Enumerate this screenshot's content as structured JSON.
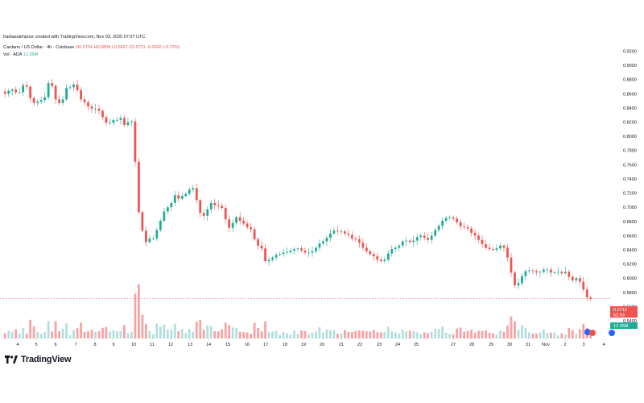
{
  "header": {
    "credit": "fradiasalehpour created with TradingView.com, Nov 03, 2025 07:07 UTC",
    "symbol": "Cardano / US Dollar · 4h · Coinbase",
    "ohlc": "O0.5754 H0.5808 L0.5667 C0.5711 -0.0042 (-0.73%)",
    "vol_label": "Vol · ADA",
    "vol_value": "12.35M"
  },
  "price_badge": {
    "price": "0.5713",
    "timer": "52:53"
  },
  "volume_badge": "12.35M",
  "brand": "TradingView",
  "colors": {
    "up": "#22ab94",
    "down": "#ef5350",
    "up_vol": "#b2dfdb",
    "down_vol": "#faa1a4"
  },
  "chart_data": {
    "type": "candlestick",
    "title": "Cardano / US Dollar · 4h · Coinbase",
    "ylim": [
      0.54,
      0.92
    ],
    "y_ticks": [
      "0.9200",
      "0.9000",
      "0.8800",
      "0.8600",
      "0.8400",
      "0.8200",
      "0.8000",
      "0.7800",
      "0.7600",
      "0.7400",
      "0.7200",
      "0.7000",
      "0.6800",
      "0.6600",
      "0.6400",
      "0.6200",
      "0.6000",
      "0.5800",
      "0.5600",
      "0.5400"
    ],
    "x_ticks": [
      "4",
      "5",
      "6",
      "7",
      "8",
      "9",
      "10",
      "11",
      "12",
      "13",
      "14",
      "15",
      "16",
      "17",
      "18",
      "19",
      "20",
      "21",
      "22",
      "23",
      "24",
      "25",
      "27",
      "28",
      "29",
      "30",
      "31",
      "Nov",
      "2",
      "3",
      "4"
    ],
    "close_series": [
      0.86,
      0.864,
      0.866,
      0.862,
      0.862,
      0.872,
      0.87,
      0.854,
      0.847,
      0.849,
      0.851,
      0.855,
      0.875,
      0.871,
      0.852,
      0.847,
      0.852,
      0.868,
      0.869,
      0.873,
      0.865,
      0.852,
      0.848,
      0.842,
      0.839,
      0.839,
      0.836,
      0.827,
      0.819,
      0.819,
      0.823,
      0.823,
      0.826,
      0.816,
      0.82,
      0.821,
      0.764,
      0.693,
      0.667,
      0.651,
      0.656,
      0.656,
      0.668,
      0.681,
      0.694,
      0.7,
      0.706,
      0.717,
      0.712,
      0.716,
      0.719,
      0.725,
      0.727,
      0.71,
      0.692,
      0.688,
      0.697,
      0.706,
      0.703,
      0.702,
      0.699,
      0.683,
      0.671,
      0.678,
      0.686,
      0.681,
      0.677,
      0.672,
      0.669,
      0.655,
      0.646,
      0.642,
      0.624,
      0.626,
      0.629,
      0.633,
      0.634,
      0.636,
      0.637,
      0.639,
      0.641,
      0.642,
      0.639,
      0.636,
      0.636,
      0.638,
      0.643,
      0.649,
      0.652,
      0.657,
      0.663,
      0.667,
      0.666,
      0.666,
      0.663,
      0.661,
      0.656,
      0.655,
      0.65,
      0.643,
      0.638,
      0.634,
      0.631,
      0.626,
      0.624,
      0.626,
      0.635,
      0.641,
      0.643,
      0.646,
      0.652,
      0.653,
      0.651,
      0.653,
      0.658,
      0.66,
      0.657,
      0.654,
      0.66,
      0.668,
      0.674,
      0.681,
      0.685,
      0.686,
      0.684,
      0.679,
      0.673,
      0.672,
      0.67,
      0.664,
      0.66,
      0.654,
      0.648,
      0.643,
      0.641,
      0.64,
      0.642,
      0.646,
      0.643,
      0.629,
      0.608,
      0.59,
      0.593,
      0.603,
      0.61,
      0.611,
      0.61,
      0.608,
      0.609,
      0.612,
      0.612,
      0.608,
      0.608,
      0.609,
      0.607,
      0.609,
      0.602,
      0.597,
      0.6,
      0.595,
      0.584,
      0.573,
      0.571
    ],
    "last_price": 0.5713,
    "volume_last": "12.35M"
  }
}
